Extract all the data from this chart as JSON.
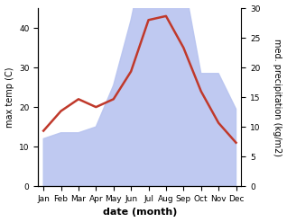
{
  "months": [
    "Jan",
    "Feb",
    "Mar",
    "Apr",
    "May",
    "Jun",
    "Jul",
    "Aug",
    "Sep",
    "Oct",
    "Nov",
    "Dec"
  ],
  "temperature": [
    14,
    19,
    22,
    20,
    22,
    29,
    42,
    43,
    35,
    24,
    16,
    11
  ],
  "precipitation": [
    8,
    9,
    9,
    10,
    17,
    28,
    42,
    35,
    35,
    19,
    19,
    13
  ],
  "temp_color": "#c0392b",
  "precip_fill_color": "#b8c4f0",
  "ylabel_left": "max temp (C)",
  "ylabel_right": "med. precipitation (kg/m2)",
  "xlabel": "date (month)",
  "ylim_left": [
    0,
    45
  ],
  "ylim_right": [
    0,
    30
  ],
  "yticks_left": [
    0,
    10,
    20,
    30,
    40
  ],
  "yticks_right": [
    0,
    5,
    10,
    15,
    20,
    25,
    30
  ],
  "background_color": "#ffffff",
  "temp_linewidth": 1.8,
  "xlabel_fontsize": 8,
  "ylabel_fontsize": 7,
  "tick_fontsize": 6.5
}
